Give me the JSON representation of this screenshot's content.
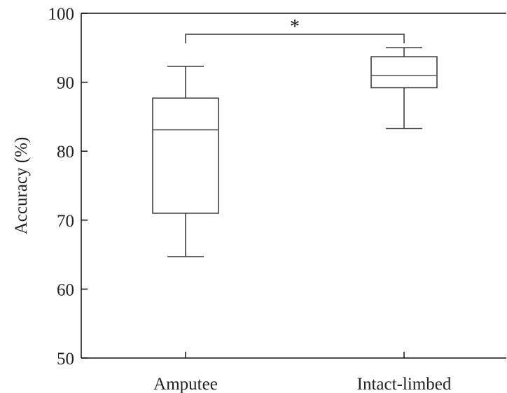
{
  "chart_data": {
    "type": "boxplot",
    "xlabel": "",
    "ylabel": "Accuracy (%)",
    "ylim": [
      50,
      100
    ],
    "yticks": [
      50,
      60,
      70,
      80,
      90,
      100
    ],
    "categories": [
      "Amputee",
      "Intact-limbed"
    ],
    "boxes": [
      {
        "category": "Amputee",
        "min": 64.7,
        "q1": 71.0,
        "median": 83.1,
        "q3": 87.7,
        "max": 92.3
      },
      {
        "category": "Intact-limbed",
        "min": 83.3,
        "q1": 89.2,
        "median": 91.0,
        "q3": 93.7,
        "max": 95.0
      }
    ],
    "significance": {
      "between": [
        "Amputee",
        "Intact-limbed"
      ],
      "label": "*"
    },
    "grid": false,
    "colors": {
      "box_edge": "#333333",
      "median": "#555555",
      "axis": "#111111"
    }
  }
}
